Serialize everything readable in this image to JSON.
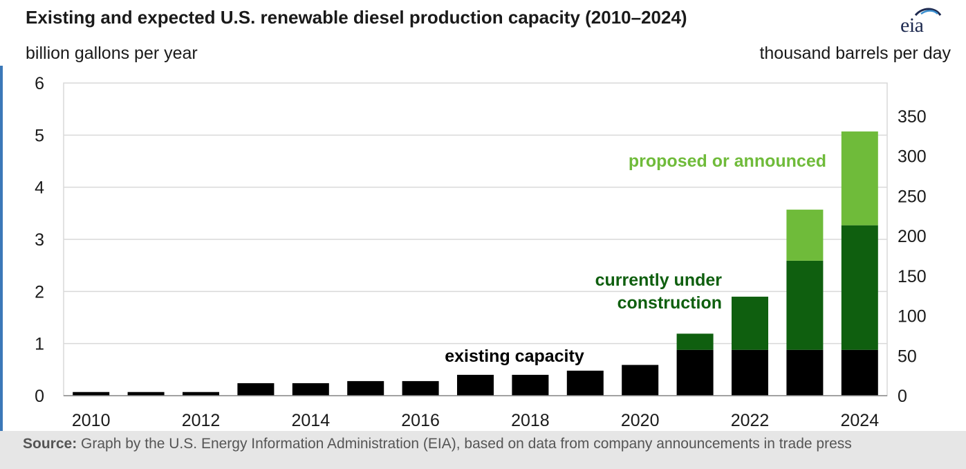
{
  "title": "Existing and expected U.S. renewable diesel production capacity (2010–2024)",
  "logo_text": "eia",
  "left_axis_label": "billion gallons per year",
  "right_axis_label": "thousand barrels per day",
  "source": {
    "label": "Source:",
    "text": " Graph by the U.S. Energy Information Administration (EIA), based on data from company announcements in trade press"
  },
  "colors": {
    "existing": "#000000",
    "under_construction": "#0f5f0f",
    "proposed": "#6fbb3a",
    "grid": "#d9d9d9"
  },
  "chart_data": {
    "type": "bar",
    "stacked": true,
    "title": "Existing and expected U.S. renewable diesel production capacity (2010–2024)",
    "ylabel": "billion gallons per year",
    "y2label": "thousand barrels per day",
    "categories": [
      "2010",
      "2011",
      "2012",
      "2013",
      "2014",
      "2015",
      "2016",
      "2017",
      "2018",
      "2019",
      "2020",
      "2021",
      "2022",
      "2023",
      "2024"
    ],
    "x_tick_labels": [
      "2010",
      "2012",
      "2014",
      "2016",
      "2018",
      "2020",
      "2022",
      "2024"
    ],
    "ylim": [
      0,
      6
    ],
    "yticks": [
      0,
      1,
      2,
      3,
      4,
      5,
      6
    ],
    "y2ticks": [
      0,
      50,
      100,
      150,
      200,
      250,
      300,
      350
    ],
    "grid": true,
    "series": [
      {
        "name": "existing capacity",
        "values": [
          0.07,
          0.07,
          0.07,
          0.24,
          0.24,
          0.28,
          0.28,
          0.4,
          0.4,
          0.48,
          0.59,
          0.88,
          0.88,
          0.88,
          0.88
        ]
      },
      {
        "name": "currently under construction",
        "values": [
          0,
          0,
          0,
          0,
          0,
          0,
          0,
          0,
          0,
          0,
          0,
          0.31,
          1.02,
          1.71,
          2.39
        ]
      },
      {
        "name": "proposed or announced",
        "values": [
          0,
          0,
          0,
          0,
          0,
          0,
          0,
          0,
          0,
          0,
          0,
          0,
          0,
          0.98,
          1.8
        ]
      }
    ],
    "annotations": [
      "existing capacity",
      "currently under construction",
      "proposed or announced"
    ]
  }
}
